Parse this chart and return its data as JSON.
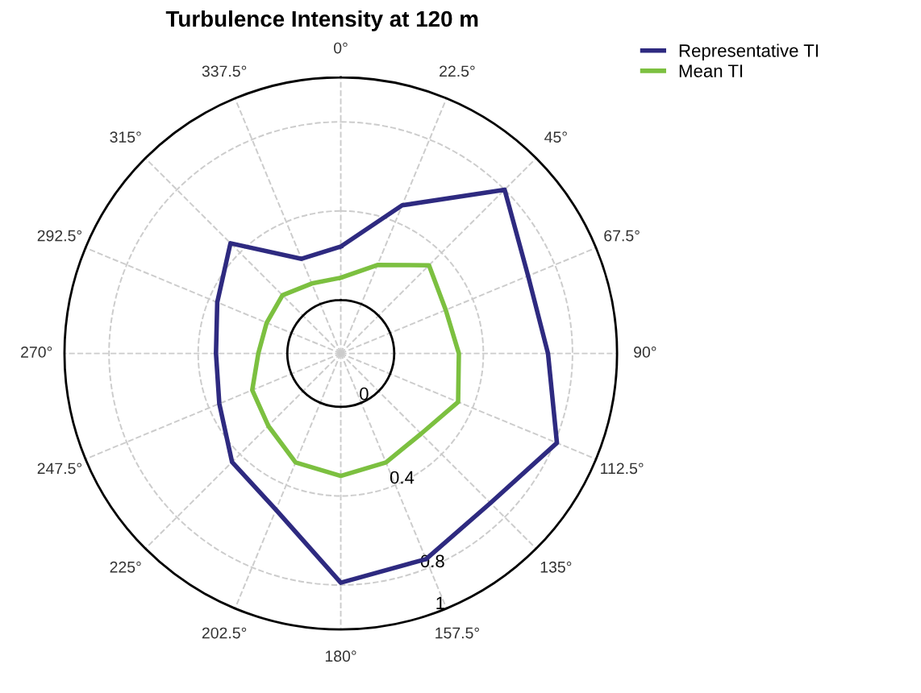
{
  "chart_data": {
    "type": "radar",
    "title": "Turbulence Intensity at 120 m",
    "categories": [
      "0°",
      "22.5°",
      "45°",
      "67.5°",
      "90°",
      "112.5°",
      "135°",
      "157.5°",
      "180°",
      "202.5°",
      "225°",
      "247.5°",
      "270°",
      "292.5°",
      "315°",
      "337.5°"
    ],
    "series": [
      {
        "name": "Representative TI",
        "color": "#2e2a80",
        "values": [
          0.24,
          0.48,
          0.8,
          0.67,
          0.69,
          0.81,
          0.71,
          0.76,
          0.79,
          0.52,
          0.45,
          0.35,
          0.32,
          0.36,
          0.46,
          0.22
        ]
      },
      {
        "name": "Mean TI",
        "color": "#7cc040",
        "values": [
          0.1,
          0.19,
          0.32,
          0.27,
          0.29,
          0.33,
          0.27,
          0.29,
          0.31,
          0.29,
          0.22,
          0.19,
          0.13,
          0.12,
          0.13,
          0.1
        ]
      }
    ],
    "ylim": [
      -0.24,
      1
    ],
    "yticks": [
      0,
      0.4,
      0.8,
      1
    ],
    "grid": true,
    "legend": "top right",
    "line_style": "solid",
    "marker": "none"
  }
}
